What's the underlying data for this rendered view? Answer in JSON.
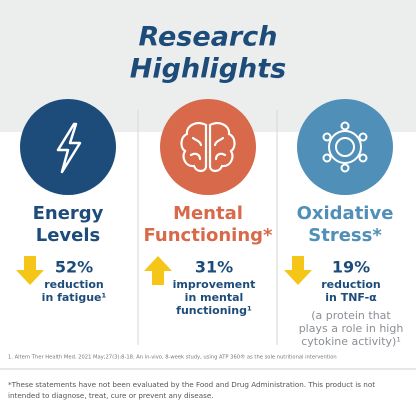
{
  "header": {
    "title_lines": [
      "Research",
      "Highlights"
    ]
  },
  "columns": [
    {
      "heading_lines": [
        "Energy",
        "Levels"
      ],
      "stat": "52%",
      "detail_lines": [
        "reduction",
        "in fatigue¹"
      ]
    },
    {
      "heading_lines": [
        "Mental",
        "Functioning*"
      ],
      "stat": "31%",
      "detail_lines": [
        "improvement",
        "in mental",
        "functioning¹"
      ]
    },
    {
      "heading_lines": [
        "Oxidative",
        "Stress*"
      ],
      "stat": "19%",
      "detail_lines": [
        "reduction",
        "in TNF-α"
      ],
      "note_lines": [
        "(a protein that",
        "plays a role in high",
        "cytokine activity)¹"
      ]
    }
  ],
  "footnote": "1. Altern Ther Health Med. 2021 May;27(3):8-18. An in-vivo, 8-week study, using ATP 360® as the sole nutritional intervention",
  "disclaimer_lines": [
    "*These statements have not been evaluated by the Food and Drug Administration. This product is not",
    "intended to diagnose, treat, cure or prevent any disease."
  ]
}
